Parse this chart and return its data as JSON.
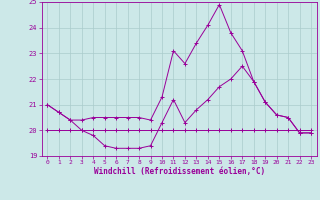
{
  "xlabel": "Windchill (Refroidissement éolien,°C)",
  "bg_color": "#cce8e8",
  "line_color": "#990099",
  "grid_color": "#aacccc",
  "hours": [
    0,
    1,
    2,
    3,
    4,
    5,
    6,
    7,
    8,
    9,
    10,
    11,
    12,
    13,
    14,
    15,
    16,
    17,
    18,
    19,
    20,
    21,
    22,
    23
  ],
  "temp": [
    21.0,
    20.7,
    20.4,
    20.4,
    20.5,
    20.5,
    20.5,
    20.5,
    20.5,
    20.4,
    21.3,
    23.1,
    22.6,
    23.4,
    24.1,
    24.9,
    23.8,
    23.1,
    21.9,
    21.1,
    20.6,
    20.5,
    19.9,
    19.9
  ],
  "windchill": [
    21.0,
    20.7,
    20.4,
    20.0,
    19.8,
    19.4,
    19.3,
    19.3,
    19.3,
    19.4,
    20.3,
    21.2,
    20.3,
    20.8,
    21.2,
    21.7,
    22.0,
    22.5,
    21.9,
    21.1,
    20.6,
    20.5,
    19.9,
    19.9
  ],
  "flat_line": [
    20.0,
    20.0,
    20.0,
    20.0,
    20.0,
    20.0,
    20.0,
    20.0,
    20.0,
    20.0,
    20.0,
    20.0,
    20.0,
    20.0,
    20.0,
    20.0,
    20.0,
    20.0,
    20.0,
    20.0,
    20.0,
    20.0,
    20.0,
    20.0
  ],
  "ylim": [
    19,
    25
  ],
  "xlim": [
    -0.5,
    23.5
  ],
  "yticks": [
    19,
    20,
    21,
    22,
    23,
    24,
    25
  ],
  "xticks": [
    0,
    1,
    2,
    3,
    4,
    5,
    6,
    7,
    8,
    9,
    10,
    11,
    12,
    13,
    14,
    15,
    16,
    17,
    18,
    19,
    20,
    21,
    22,
    23
  ]
}
